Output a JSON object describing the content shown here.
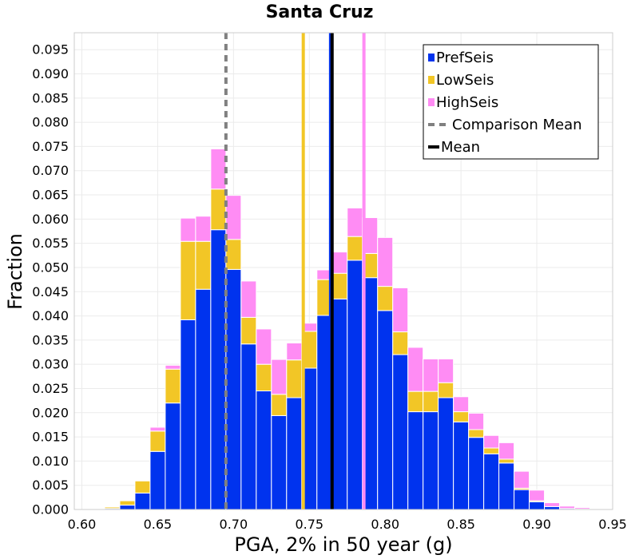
{
  "chart_data": {
    "type": "bar",
    "stacked": true,
    "title": "Santa Cruz",
    "xlabel": "PGA, 2% in 50 year (g)",
    "ylabel": "Fraction",
    "xlim": [
      0.595,
      0.95
    ],
    "ylim": [
      0.0,
      0.0985
    ],
    "xticks": [
      "0.60",
      "0.65",
      "0.70",
      "0.75",
      "0.80",
      "0.85",
      "0.90",
      "0.95"
    ],
    "xtick_values": [
      0.6,
      0.65,
      0.7,
      0.75,
      0.8,
      0.85,
      0.9,
      0.95
    ],
    "yticks": [
      "0.000",
      "0.005",
      "0.010",
      "0.015",
      "0.020",
      "0.025",
      "0.030",
      "0.035",
      "0.040",
      "0.045",
      "0.050",
      "0.055",
      "0.060",
      "0.065",
      "0.070",
      "0.075",
      "0.080",
      "0.085",
      "0.090",
      "0.095"
    ],
    "ytick_values": [
      0.0,
      0.005,
      0.01,
      0.015,
      0.02,
      0.025,
      0.03,
      0.035,
      0.04,
      0.045,
      0.05,
      0.055,
      0.06,
      0.065,
      0.07,
      0.075,
      0.08,
      0.085,
      0.09,
      0.095
    ],
    "grid": true,
    "legend_position": "top-right",
    "bin_width": 0.01,
    "x": [
      0.61,
      0.62,
      0.63,
      0.64,
      0.65,
      0.66,
      0.67,
      0.68,
      0.69,
      0.7,
      0.71,
      0.72,
      0.73,
      0.74,
      0.75,
      0.76,
      0.77,
      0.78,
      0.79,
      0.8,
      0.81,
      0.82,
      0.83,
      0.84,
      0.85,
      0.86,
      0.87,
      0.88,
      0.89,
      0.9,
      0.91,
      0.92,
      0.93
    ],
    "series": [
      {
        "name": "PrefSeis",
        "color": "#0033ee",
        "values": [
          0.0001,
          0.0002,
          0.0009,
          0.0034,
          0.012,
          0.022,
          0.0392,
          0.0455,
          0.0578,
          0.0496,
          0.0342,
          0.0245,
          0.0194,
          0.0231,
          0.0292,
          0.0401,
          0.0435,
          0.0515,
          0.0479,
          0.0411,
          0.032,
          0.0202,
          0.0202,
          0.0231,
          0.0181,
          0.0149,
          0.0115,
          0.0096,
          0.0041,
          0.0016,
          0.0006,
          0.0002,
          0.0001
        ]
      },
      {
        "name": "LowSeis",
        "color": "#f2c626",
        "values": [
          0.0,
          0.0003,
          0.0009,
          0.0025,
          0.0042,
          0.007,
          0.0162,
          0.0099,
          0.0084,
          0.0062,
          0.0055,
          0.0055,
          0.0044,
          0.0078,
          0.0076,
          0.0074,
          0.0053,
          0.0049,
          0.005,
          0.005,
          0.0047,
          0.0042,
          0.0042,
          0.0031,
          0.0021,
          0.0016,
          0.0012,
          0.0008,
          0.0003,
          0.0002,
          0.0,
          0.0,
          0.0
        ]
      },
      {
        "name": "HighSeis",
        "color": "#ff8cf4",
        "values": [
          0.0,
          0.0,
          0.0,
          0.0,
          0.0008,
          0.0008,
          0.0048,
          0.0052,
          0.0083,
          0.0091,
          0.0075,
          0.0073,
          0.0072,
          0.0035,
          0.0017,
          0.002,
          0.0044,
          0.0059,
          0.0074,
          0.0101,
          0.0091,
          0.0091,
          0.0067,
          0.0049,
          0.0031,
          0.0034,
          0.0026,
          0.0034,
          0.0035,
          0.0022,
          0.0008,
          0.0005,
          0.0003
        ]
      }
    ],
    "vertical_lines": [
      {
        "name": "Comparison Mean",
        "x": 0.695,
        "color": "#808080",
        "style": "dashed"
      },
      {
        "name": "LowSeis mean",
        "x": 0.746,
        "color": "#f2c626",
        "style": "solid",
        "legend": false
      },
      {
        "name": "PrefSeis mean",
        "x": 0.764,
        "color": "#0033ee",
        "style": "solid",
        "legend": false
      },
      {
        "name": "Mean",
        "x": 0.765,
        "color": "#000000",
        "style": "solid"
      },
      {
        "name": "HighSeis mean",
        "x": 0.786,
        "color": "#ff8cf4",
        "style": "solid",
        "legend": false
      }
    ],
    "legend": [
      {
        "label": "PrefSeis",
        "kind": "swatch",
        "color": "#0033ee"
      },
      {
        "label": "LowSeis",
        "kind": "swatch",
        "color": "#f2c626"
      },
      {
        "label": "HighSeis",
        "kind": "swatch",
        "color": "#ff8cf4"
      },
      {
        "label": "Comparison Mean",
        "kind": "dashed-line",
        "color": "#808080"
      },
      {
        "label": "Mean",
        "kind": "line",
        "color": "#000000"
      }
    ]
  }
}
